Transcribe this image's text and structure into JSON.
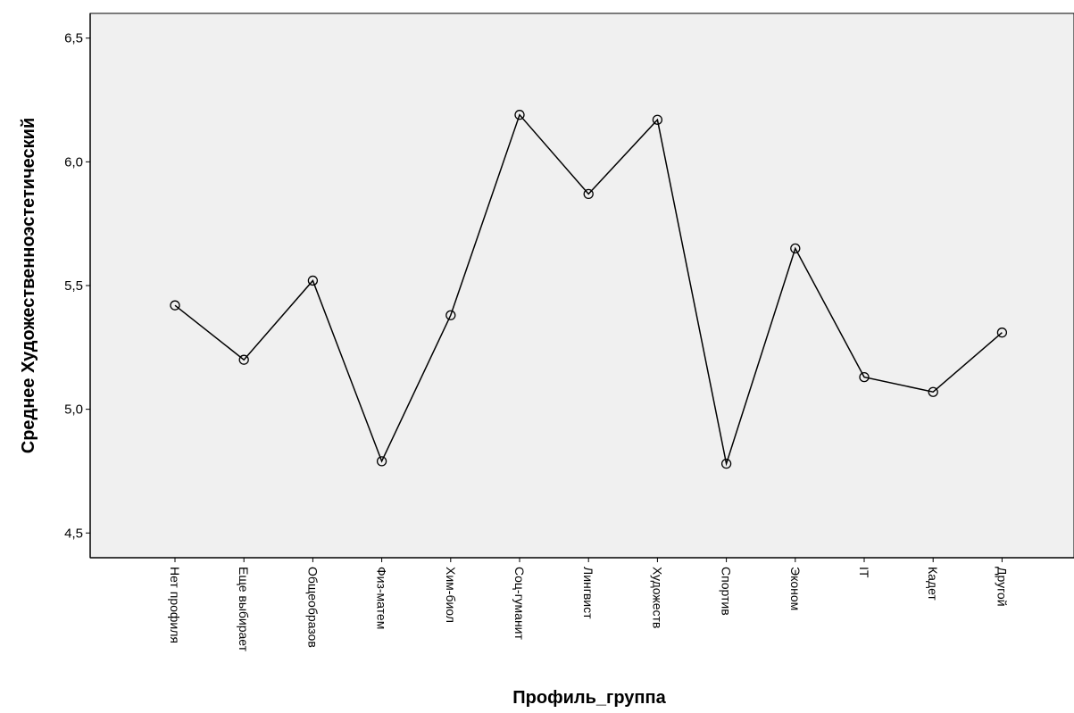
{
  "chart_data": {
    "type": "line",
    "xlabel": "Профиль_группа",
    "ylabel": "Среднее Художественноэстетический",
    "ylim": [
      4.4,
      6.6
    ],
    "yticks": [
      4.5,
      5.0,
      5.5,
      6.0,
      6.5
    ],
    "ytick_labels": [
      "4,5",
      "5,0",
      "5,5",
      "6,0",
      "6,5"
    ],
    "categories": [
      "Нет профиля",
      "Еще выбирает",
      "Общеобразов",
      "Физ-матем",
      "Хим-биол",
      "Соц-гуманит",
      "Лингвист",
      "Художеств",
      "Спортив",
      "Эконом",
      "IT",
      "Кадет",
      "Другой"
    ],
    "series": [
      {
        "values": [
          5.42,
          5.2,
          5.52,
          4.79,
          5.38,
          6.19,
          5.87,
          6.17,
          4.78,
          5.65,
          5.13,
          5.07,
          5.31
        ]
      }
    ],
    "marker": "circle",
    "grid": false,
    "background": "#f0f0f0",
    "line_color": "#000000"
  }
}
